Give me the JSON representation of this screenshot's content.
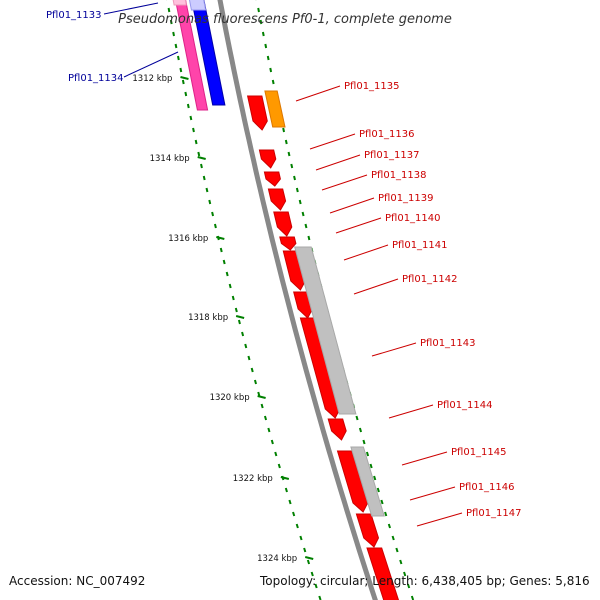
{
  "title": "Pseudomonas fluorescens Pf0-1, complete genome",
  "accession": "Accession: NC_007492",
  "summary": "Topology: circular; Length: 6,438,405 bp; Genes: 5,816",
  "colors": {
    "backbone": "#888888",
    "forward": "#ff0000",
    "forward_edge": "#cc0000",
    "grey": "#c0c0c0",
    "grey_edge": "#a8a8a8",
    "orange": "#ff9900",
    "magenta": "#ff44aa",
    "pink": "#ffc0dd",
    "blue": "#0000ff",
    "light_blue": "#ccccff",
    "label_red": "#cc0000",
    "label_blue": "#000099",
    "tick": "#008000"
  },
  "scale_ticks": [
    {
      "label": "1312 kbp"
    },
    {
      "label": "1314 kbp"
    },
    {
      "label": "1316 kbp"
    },
    {
      "label": "1318 kbp"
    },
    {
      "label": "1320 kbp"
    },
    {
      "label": "1322 kbp"
    },
    {
      "label": "1324 kbp"
    }
  ],
  "left_labels": [
    {
      "label": "Pfl01_1133"
    },
    {
      "label": "Pfl01_1134"
    }
  ],
  "right_labels": [
    {
      "label": "Pfl01_1135"
    },
    {
      "label": "Pfl01_1136"
    },
    {
      "label": "Pfl01_1137"
    },
    {
      "label": "Pfl01_1138"
    },
    {
      "label": "Pfl01_1139"
    },
    {
      "label": "Pfl01_1140"
    },
    {
      "label": "Pfl01_1141"
    },
    {
      "label": "Pfl01_1142"
    },
    {
      "label": "Pfl01_1143"
    },
    {
      "label": "Pfl01_1144"
    },
    {
      "label": "Pfl01_1145"
    },
    {
      "label": "Pfl01_1146"
    },
    {
      "label": "Pfl01_1147"
    }
  ]
}
